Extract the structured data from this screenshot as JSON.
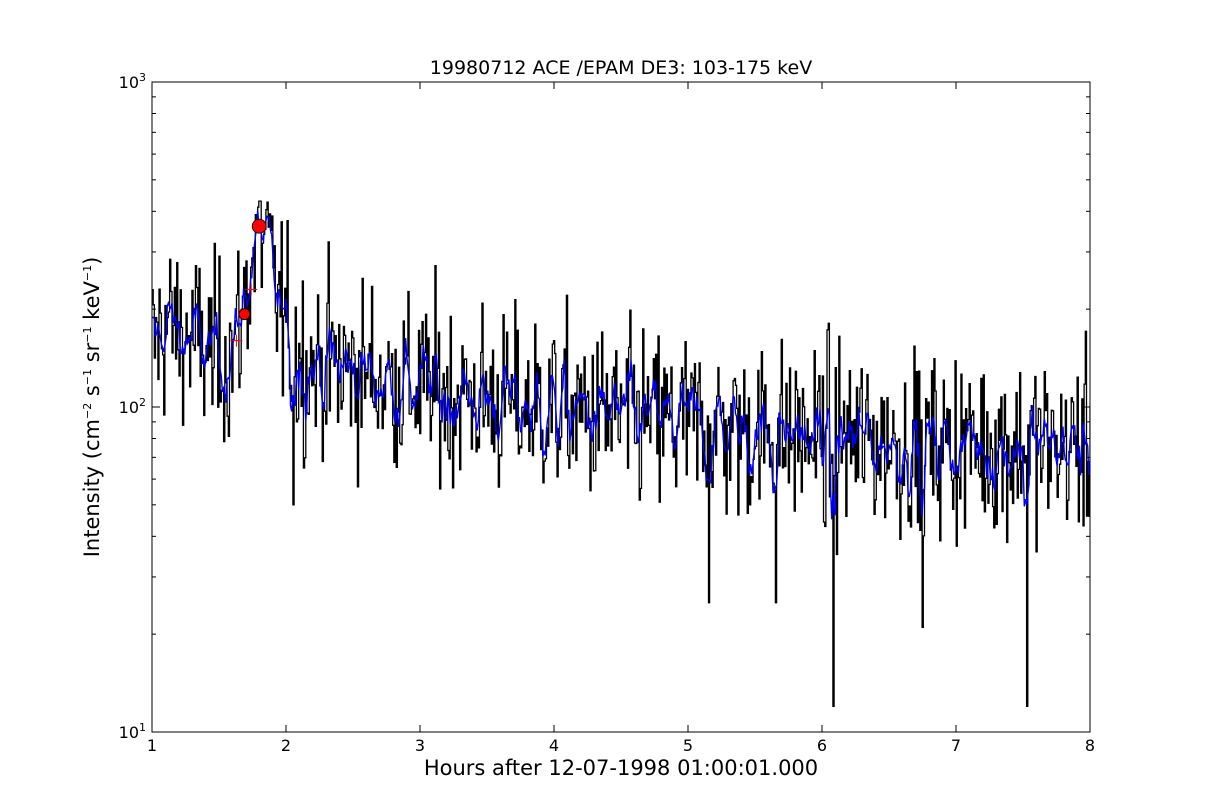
{
  "chart_data": {
    "type": "line",
    "title": "19980712 ACE /EPAM DE3: 103-175 keV",
    "xlabel": "Hours after 12-07-1998 01:00:01.000",
    "ylabel": {
      "base": "Intensity (cm",
      "s1": "−2",
      "m1": " s",
      "s2": "−1",
      "m2": " sr",
      "s3": "−1",
      "m3": " keV",
      "s4": "−1",
      "end": ")"
    },
    "xlim": [
      1,
      8
    ],
    "ylim": [
      10,
      1000
    ],
    "yscale": "log",
    "grid": false,
    "x_ticks": [
      "1",
      "2",
      "3",
      "4",
      "5",
      "6",
      "7",
      "8"
    ],
    "y_ticks": [
      {
        "value": 10,
        "base": "10",
        "exp": "1"
      },
      {
        "value": 100,
        "base": "10",
        "exp": "2"
      },
      {
        "value": 1000,
        "base": "10",
        "exp": "3"
      }
    ],
    "series": [
      {
        "color": "#000000",
        "style": "steps",
        "anchors": [
          [
            1.0,
            150
          ],
          [
            1.05,
            165
          ],
          [
            1.1,
            180
          ],
          [
            1.2,
            170
          ],
          [
            1.3,
            160
          ],
          [
            1.4,
            150
          ],
          [
            1.5,
            145
          ],
          [
            1.6,
            150
          ],
          [
            1.65,
            175
          ],
          [
            1.7,
            230
          ],
          [
            1.75,
            290
          ],
          [
            1.8,
            360
          ],
          [
            1.85,
            320
          ],
          [
            1.9,
            240
          ],
          [
            2.0,
            170
          ],
          [
            2.1,
            140
          ],
          [
            2.2,
            135
          ],
          [
            2.5,
            130
          ],
          [
            3.0,
            115
          ],
          [
            3.5,
            105
          ],
          [
            4.0,
            98
          ],
          [
            4.5,
            92
          ],
          [
            5.0,
            88
          ],
          [
            5.5,
            84
          ],
          [
            6.0,
            80
          ],
          [
            6.5,
            78
          ],
          [
            7.0,
            77
          ],
          [
            7.5,
            76
          ],
          [
            8.0,
            75
          ]
        ],
        "dips": [
          [
            2.05,
            50
          ],
          [
            5.15,
            25
          ],
          [
            5.65,
            25
          ],
          [
            6.08,
            12
          ],
          [
            6.75,
            21
          ],
          [
            7.53,
            12
          ]
        ]
      },
      {
        "color": "#0000ff",
        "style": "line",
        "smoothing": 5
      }
    ],
    "markers": [
      {
        "type": "circle",
        "color": "#ff0000",
        "x": 1.8,
        "y": 360
      },
      {
        "type": "circle",
        "color": "#ff0000",
        "x": 1.69,
        "y": 193
      },
      {
        "type": "plus",
        "color": "#ff0000",
        "x": 1.74,
        "y": 230
      },
      {
        "type": "plus",
        "color": "#ff0000",
        "x": 1.63,
        "y": 160
      }
    ]
  }
}
